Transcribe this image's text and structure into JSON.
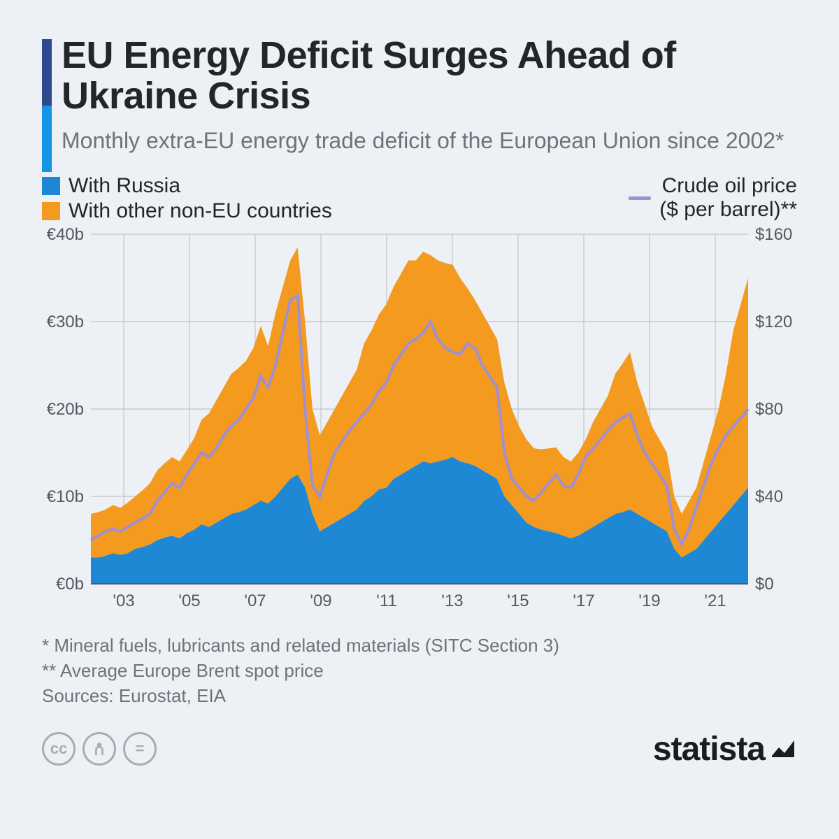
{
  "title": "EU Energy Deficit Surges Ahead of Ukraine Crisis",
  "subtitle": "Monthly extra-EU energy trade deficit of the European Union since 2002*",
  "legend": {
    "series1": "With Russia",
    "series2": "With other non-EU countries",
    "line": "Crude oil price\n($ per barrel)**"
  },
  "colors": {
    "russia": "#1f88d4",
    "other": "#f39a1f",
    "oil": "#a08fd3",
    "bg": "#edf0f4",
    "grid": "#b6b9bf",
    "gridx": "#d5d7db",
    "text": "#232529",
    "muted": "#6f7278",
    "headerbar1": "#2e4a8f",
    "headerbar2": "#1593e6"
  },
  "chart": {
    "type": "stacked-area-with-line",
    "xlabels": [
      "'03",
      "'05",
      "'07",
      "'09",
      "'11",
      "'13",
      "'15",
      "'17",
      "'19",
      "'21"
    ],
    "yleft_labels": [
      "€0b",
      "€10b",
      "€20b",
      "€30b",
      "€40b"
    ],
    "yleft_lim": [
      0,
      40
    ],
    "yright_labels": [
      "$0",
      "$40",
      "$80",
      "$120",
      "$160"
    ],
    "yright_lim": [
      0,
      160
    ],
    "x_years": [
      2002,
      2022
    ],
    "russia": [
      3,
      3,
      3.2,
      3.5,
      3.3,
      3.5,
      4,
      4.2,
      4.5,
      5,
      5.3,
      5.5,
      5.2,
      5.8,
      6.2,
      6.8,
      6.5,
      7,
      7.5,
      8,
      8.2,
      8.5,
      9,
      9.5,
      9.2,
      10,
      11,
      12,
      12.5,
      11,
      8,
      6,
      6.5,
      7,
      7.5,
      8,
      8.5,
      9.5,
      10,
      10.8,
      11,
      12,
      12.5,
      13,
      13.5,
      14,
      13.8,
      14,
      14.2,
      14.5,
      14,
      13.8,
      13.5,
      13,
      12.5,
      12,
      10,
      9,
      8,
      7,
      6.5,
      6.2,
      6,
      5.8,
      5.5,
      5.2,
      5.5,
      6,
      6.5,
      7,
      7.5,
      8,
      8.2,
      8.5,
      8,
      7.5,
      7,
      6.5,
      6,
      4,
      3,
      3.5,
      4,
      5,
      6,
      7,
      8,
      9,
      10,
      11
    ],
    "other": [
      5,
      5.2,
      5.3,
      5.5,
      5.4,
      5.8,
      6,
      6.5,
      7,
      8,
      8.5,
      9,
      8.8,
      9.5,
      10.5,
      12,
      13,
      14,
      15,
      16,
      16.5,
      17,
      18,
      20,
      18,
      21,
      23,
      25,
      26,
      19,
      12,
      11,
      12,
      13,
      14,
      15,
      16,
      18,
      19,
      20,
      21,
      22,
      23,
      24,
      23.5,
      24,
      23.8,
      23,
      22.5,
      22,
      21,
      20,
      19,
      18,
      17,
      16,
      13,
      11,
      10,
      9.5,
      9,
      9.2,
      9.5,
      9.8,
      9,
      8.8,
      9.5,
      10.5,
      12,
      13,
      14,
      16,
      17,
      18,
      15,
      13,
      11,
      10,
      9,
      6,
      5,
      6,
      7,
      9,
      11,
      13,
      16,
      20,
      22,
      24
    ],
    "oil": [
      20,
      22,
      24,
      25,
      24,
      26,
      28,
      30,
      32,
      38,
      42,
      46,
      44,
      50,
      55,
      60,
      58,
      62,
      68,
      72,
      75,
      80,
      85,
      95,
      90,
      100,
      115,
      130,
      132,
      80,
      45,
      40,
      50,
      60,
      65,
      70,
      74,
      78,
      82,
      88,
      92,
      100,
      105,
      110,
      112,
      115,
      120,
      112,
      108,
      106,
      105,
      110,
      108,
      100,
      95,
      90,
      60,
      48,
      44,
      40,
      38,
      42,
      46,
      50,
      45,
      44,
      50,
      58,
      62,
      66,
      70,
      74,
      76,
      78,
      68,
      60,
      55,
      50,
      45,
      25,
      18,
      25,
      35,
      45,
      55,
      62,
      68,
      72,
      76,
      80
    ],
    "title_fontsize": 54,
    "subtitle_fontsize": 32,
    "axis_fontsize": 24
  },
  "footnotes": {
    "n1": "*   Mineral fuels, lubricants and related materials (SITC Section 3)",
    "n2": "** Average Europe Brent spot price",
    "sources": "Sources: Eurostat, EIA"
  },
  "brand": "statista"
}
